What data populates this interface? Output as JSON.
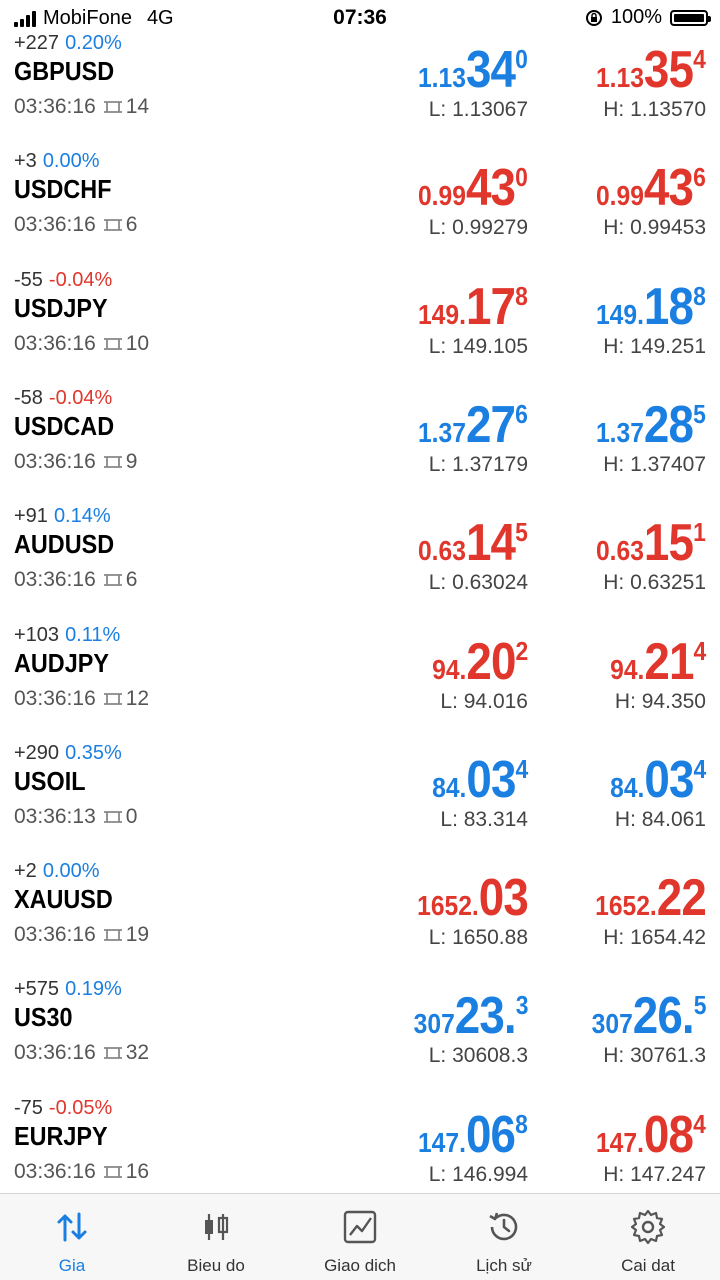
{
  "status_bar": {
    "carrier": "MobiFone",
    "network": "4G",
    "time": "07:36",
    "battery": "100%"
  },
  "quotes": [
    {
      "change": "+227",
      "pct": "0.20%",
      "pct_color": "blue",
      "symbol": "GBPUSD",
      "time": "03:36:16",
      "spread": "14",
      "bid_color": "blue",
      "bid": {
        "small": "1.13",
        "big": "34",
        "sup": "0"
      },
      "ask_color": "red",
      "ask": {
        "small": "1.13",
        "big": "35",
        "sup": "4"
      },
      "low": "L: 1.13067",
      "high": "H: 1.13570"
    },
    {
      "change": "+3",
      "pct": "0.00%",
      "pct_color": "blue",
      "symbol": "USDCHF",
      "time": "03:36:16",
      "spread": "6",
      "bid_color": "red",
      "bid": {
        "small": "0.99",
        "big": "43",
        "sup": "0"
      },
      "ask_color": "red",
      "ask": {
        "small": "0.99",
        "big": "43",
        "sup": "6"
      },
      "low": "L: 0.99279",
      "high": "H: 0.99453"
    },
    {
      "change": "-55",
      "pct": "-0.04%",
      "pct_color": "red",
      "symbol": "USDJPY",
      "time": "03:36:16",
      "spread": "10",
      "bid_color": "red",
      "bid": {
        "small": "149.",
        "big": "17",
        "sup": "8"
      },
      "ask_color": "blue",
      "ask": {
        "small": "149.",
        "big": "18",
        "sup": "8"
      },
      "low": "L: 149.105",
      "high": "H: 149.251"
    },
    {
      "change": "-58",
      "pct": "-0.04%",
      "pct_color": "red",
      "symbol": "USDCAD",
      "time": "03:36:16",
      "spread": "9",
      "bid_color": "blue",
      "bid": {
        "small": "1.37",
        "big": "27",
        "sup": "6"
      },
      "ask_color": "blue",
      "ask": {
        "small": "1.37",
        "big": "28",
        "sup": "5"
      },
      "low": "L: 1.37179",
      "high": "H: 1.37407"
    },
    {
      "change": "+91",
      "pct": "0.14%",
      "pct_color": "blue",
      "symbol": "AUDUSD",
      "time": "03:36:16",
      "spread": "6",
      "bid_color": "red",
      "bid": {
        "small": "0.63",
        "big": "14",
        "sup": "5"
      },
      "ask_color": "red",
      "ask": {
        "small": "0.63",
        "big": "15",
        "sup": "1"
      },
      "low": "L: 0.63024",
      "high": "H: 0.63251"
    },
    {
      "change": "+103",
      "pct": "0.11%",
      "pct_color": "blue",
      "symbol": "AUDJPY",
      "time": "03:36:16",
      "spread": "12",
      "bid_color": "red",
      "bid": {
        "small": "94.",
        "big": "20",
        "sup": "2"
      },
      "ask_color": "red",
      "ask": {
        "small": "94.",
        "big": "21",
        "sup": "4"
      },
      "low": "L: 94.016",
      "high": "H: 94.350"
    },
    {
      "change": "+290",
      "pct": "0.35%",
      "pct_color": "blue",
      "symbol": "USOIL",
      "time": "03:36:13",
      "spread": "0",
      "bid_color": "blue",
      "bid": {
        "small": "84.",
        "big": "03",
        "sup": "4"
      },
      "ask_color": "blue",
      "ask": {
        "small": "84.",
        "big": "03",
        "sup": "4"
      },
      "low": "L: 83.314",
      "high": "H: 84.061"
    },
    {
      "change": "+2",
      "pct": "0.00%",
      "pct_color": "blue",
      "symbol": "XAUUSD",
      "time": "03:36:16",
      "spread": "19",
      "bid_color": "red",
      "bid": {
        "small": "1652.",
        "big": "03",
        "sup": ""
      },
      "ask_color": "red",
      "ask": {
        "small": "1652.",
        "big": "22",
        "sup": ""
      },
      "low": "L: 1650.88",
      "high": "H: 1654.42"
    },
    {
      "change": "+575",
      "pct": "0.19%",
      "pct_color": "blue",
      "symbol": "US30",
      "time": "03:36:16",
      "spread": "32",
      "bid_color": "blue",
      "bid": {
        "small": "307",
        "big": "23.",
        "sup": "3"
      },
      "ask_color": "blue",
      "ask": {
        "small": "307",
        "big": "26.",
        "sup": "5"
      },
      "low": "L: 30608.3",
      "high": "H: 30761.3"
    },
    {
      "change": "-75",
      "pct": "-0.05%",
      "pct_color": "red",
      "symbol": "EURJPY",
      "time": "03:36:16",
      "spread": "16",
      "bid_color": "blue",
      "bid": {
        "small": "147.",
        "big": "06",
        "sup": "8"
      },
      "ask_color": "red",
      "ask": {
        "small": "147.",
        "big": "08",
        "sup": "4"
      },
      "low": "L: 146.994",
      "high": "H: 147.247"
    }
  ],
  "tabs": [
    {
      "label": "Gia",
      "icon": "sort-arrows-icon",
      "active": true
    },
    {
      "label": "Bieu do",
      "icon": "candlestick-icon",
      "active": false
    },
    {
      "label": "Giao dich",
      "icon": "trade-chart-icon",
      "active": false
    },
    {
      "label": "Lịch sử",
      "icon": "history-icon",
      "active": false
    },
    {
      "label": "Cai dat",
      "icon": "gear-icon",
      "active": false
    }
  ],
  "colors": {
    "blue": "#1a7fe0",
    "red": "#e0362c"
  }
}
